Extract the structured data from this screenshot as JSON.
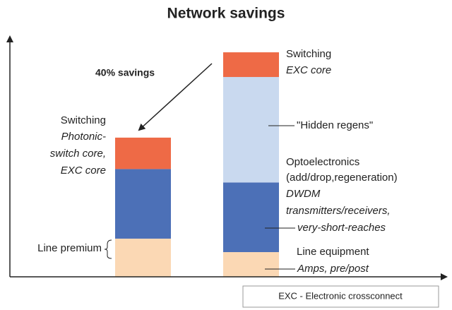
{
  "chart_data": {
    "type": "bar",
    "stacked": true,
    "title": "Network savings",
    "categories": [
      null,
      null
    ],
    "ylim": [
      0,
      106
    ],
    "series": [
      {
        "color": "#fbd8b4",
        "values": [
          17,
          11
        ]
      },
      {
        "color": "#4c70b7",
        "values": [
          31,
          31
        ]
      },
      {
        "color": "#c9d9ef",
        "values": [
          null,
          47
        ]
      },
      {
        "color": "#ee6a46",
        "values": [
          14,
          11
        ]
      }
    ],
    "annotations": {
      "savings": "40% savings",
      "left_switching": [
        "Switching",
        "Photonic-",
        "switch core,",
        "EXC core"
      ],
      "line_premium": "Line premium",
      "right_switching": [
        "Switching",
        "EXC core"
      ],
      "hidden_regens": "\"Hidden regens\"",
      "optoelectronics": [
        "Optoelectronics",
        "(add/drop,regeneration)",
        "DWDM",
        "transmitters/receivers,",
        "very-short-reaches"
      ],
      "line_equipment": [
        "Line equipment",
        "Amps, pre/post"
      ],
      "legend_note": "EXC - Electronic crossconnect"
    }
  }
}
